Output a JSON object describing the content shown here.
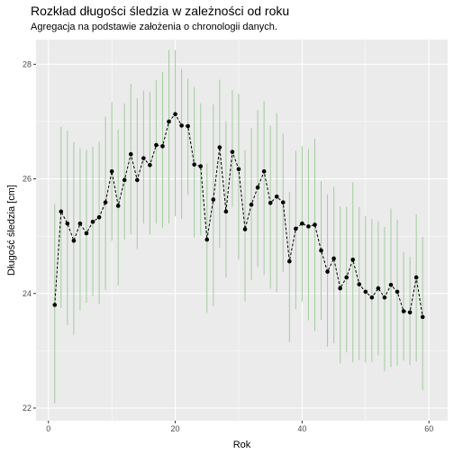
{
  "chart_data": {
    "type": "scatter",
    "title": "Rozkład długości śledzia w zależności od roku",
    "subtitle": "Agregacja na podstawie założenia o chronologii danych.",
    "xlabel": "Rok",
    "ylabel": "Długość śledzia [cm]",
    "xlim": [
      -1.95,
      62.95
    ],
    "ylim": [
      21.78,
      28.43
    ],
    "x_ticks": [
      0,
      20,
      40,
      60
    ],
    "y_ticks": [
      22,
      24,
      26,
      28
    ],
    "grid": true,
    "background": "#ebebeb",
    "error_bar_color": "#a3cc9e",
    "point_color": "#000000",
    "line_style": "dashed",
    "x": [
      1,
      2,
      3,
      4,
      5,
      6,
      7,
      8,
      9,
      10,
      11,
      12,
      13,
      14,
      15,
      16,
      17,
      18,
      19,
      20,
      21,
      22,
      23,
      24,
      25,
      26,
      27,
      28,
      29,
      30,
      31,
      32,
      33,
      34,
      35,
      36,
      37,
      38,
      39,
      40,
      41,
      42,
      43,
      44,
      45,
      46,
      47,
      48,
      49,
      50,
      51,
      52,
      53,
      54,
      55,
      56,
      57,
      58,
      59,
      60
    ],
    "y": [
      23.8,
      25.43,
      25.22,
      24.92,
      25.22,
      25.05,
      25.25,
      25.33,
      25.59,
      26.13,
      25.53,
      25.98,
      26.43,
      25.98,
      26.36,
      26.24,
      26.59,
      26.57,
      27.0,
      27.13,
      26.93,
      26.92,
      26.25,
      26.22,
      24.94,
      25.64,
      26.55,
      25.43,
      26.47,
      26.17,
      25.12,
      25.55,
      25.85,
      26.13,
      25.58,
      25.69,
      25.59,
      24.56,
      25.13,
      25.22,
      25.17,
      25.2,
      24.75,
      24.38,
      24.61,
      24.09,
      24.28,
      24.59,
      24.16,
      24.03,
      23.93,
      24.09,
      23.93,
      24.15,
      24.03,
      23.69,
      23.67,
      24.28,
      23.59,
      null
    ],
    "ymin": [
      22.08,
      23.75,
      23.45,
      23.28,
      23.7,
      23.84,
      23.95,
      23.82,
      24.06,
      24.92,
      24.14,
      24.94,
      25.03,
      24.77,
      25.22,
      25.03,
      25.22,
      25.15,
      25.22,
      25.35,
      25.3,
      25.72,
      24.98,
      25.01,
      23.66,
      23.78,
      24.8,
      24.28,
      25.51,
      24.59,
      23.86,
      24.23,
      24.46,
      24.32,
      24.08,
      24.02,
      24.37,
      23.15,
      23.73,
      23.86,
      23.53,
      23.34,
      23.54,
      23.07,
      23.13,
      22.78,
      22.97,
      22.8,
      22.84,
      22.8,
      22.8,
      22.92,
      22.64,
      22.72,
      22.74,
      22.83,
      22.75,
      22.81,
      22.31,
      null
    ],
    "ymax": [
      25.56,
      26.91,
      26.84,
      26.64,
      26.54,
      26.51,
      26.56,
      26.65,
      27.09,
      27.34,
      26.86,
      27.32,
      27.66,
      27.41,
      27.54,
      27.52,
      27.72,
      27.86,
      28.25,
      28.25,
      27.92,
      27.75,
      27.6,
      27.32,
      26.27,
      27.3,
      27.73,
      27.01,
      27.55,
      27.48,
      26.5,
      26.89,
      27.2,
      27.36,
      26.93,
      27.15,
      26.79,
      25.77,
      26.49,
      26.57,
      26.52,
      26.7,
      25.96,
      25.73,
      25.86,
      25.52,
      25.51,
      25.94,
      25.51,
      25.35,
      25.3,
      25.26,
      25.16,
      25.48,
      25.29,
      24.72,
      24.64,
      25.38,
      24.99,
      null
    ]
  }
}
